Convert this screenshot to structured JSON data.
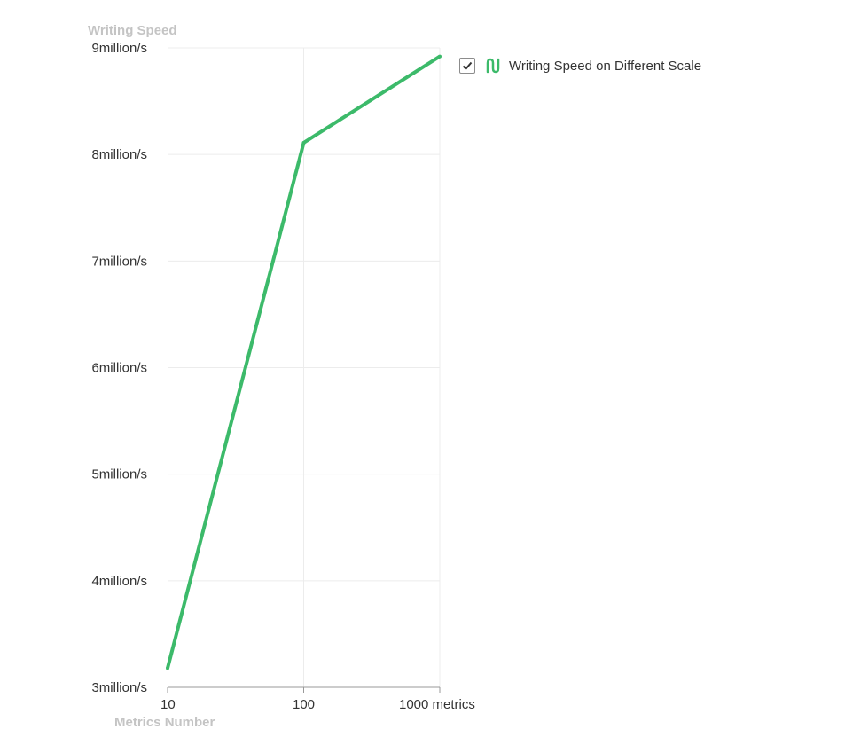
{
  "chart_data": {
    "type": "line",
    "ylabel": "Writing Speed",
    "xlabel": "Metrics Number",
    "x": [
      10,
      100,
      1000
    ],
    "x_ticks": [
      "10",
      "100",
      "1000 metrics"
    ],
    "x_scale": "log",
    "y_ticks": [
      "3million/s",
      "4million/s",
      "5million/s",
      "6million/s",
      "7million/s",
      "8million/s",
      "9million/s"
    ],
    "ylim": [
      3,
      9
    ],
    "y_unit": "million/s",
    "series": [
      {
        "name": "Writing Speed on Different Scale",
        "values": [
          3.18,
          8.11,
          8.92
        ],
        "color": "#3cba6a"
      }
    ],
    "legend": {
      "label": "Writing Speed on Different Scale",
      "checked": true,
      "placement": "top-right",
      "icon": "line-series-icon"
    },
    "grid": true
  }
}
